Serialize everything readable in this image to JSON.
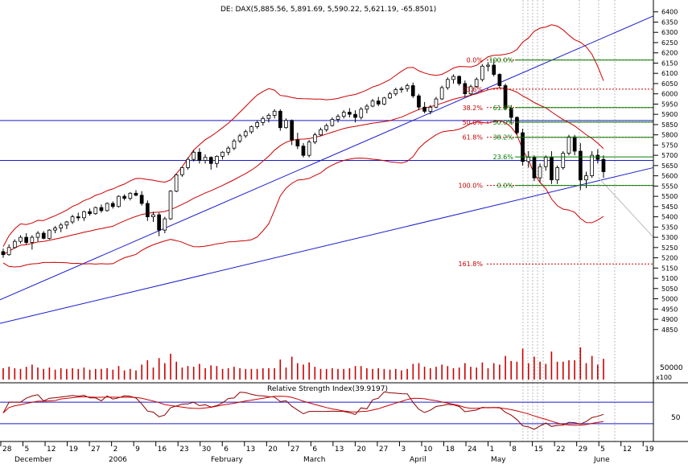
{
  "chart_data": {
    "type": "candlestick",
    "title": "DE: DAX(5,885.56, 5,891.69, 5,590.22, 5,621.19, -65.8501)",
    "y_axis": {
      "min": 4700,
      "max": 6450,
      "ticks": [
        4850,
        4900,
        4950,
        5000,
        5050,
        5100,
        5150,
        5200,
        5250,
        5300,
        5350,
        5400,
        5450,
        5500,
        5550,
        5600,
        5650,
        5700,
        5750,
        5800,
        5850,
        5900,
        5950,
        6000,
        6050,
        6100,
        6150,
        6200,
        6250,
        6300,
        6350,
        6400
      ]
    },
    "volume": {
      "label": "50000",
      "unit": "x100"
    },
    "rsi": {
      "title": "Relative Strength Index(39.9197)",
      "label": "50",
      "upper_level": 70,
      "lower_level": 30
    },
    "x_axis": {
      "days": [
        "28",
        "5",
        "12",
        "19",
        "27",
        "2",
        "9",
        "16",
        "23",
        "30",
        "6",
        "13",
        "20",
        "27",
        "6",
        "13",
        "20",
        "27",
        "3",
        "10",
        "18",
        "24",
        "1",
        "8",
        "15",
        "22",
        "29",
        "5",
        "12",
        "19"
      ],
      "months": [
        "December",
        "2006",
        "February",
        "March",
        "April",
        "May",
        "June"
      ]
    },
    "fibonacci_left": [
      {
        "label": "0.0%",
        "value": 6165,
        "color": "#c00000"
      },
      {
        "label": "23.6%",
        "value": 6023,
        "color": "#c00000"
      },
      {
        "label": "38.2%",
        "value": 5933,
        "color": "#c00000"
      },
      {
        "label": "50.0%",
        "value": 5862,
        "color": "#c00000"
      },
      {
        "label": "61.8%",
        "value": 5788,
        "color": "#c00000"
      },
      {
        "label": "100.0%",
        "value": 5553,
        "color": "#c00000"
      },
      {
        "label": "161.8%",
        "value": 5170,
        "color": "#c00000"
      }
    ],
    "fibonacci_right": [
      {
        "label": "100.0%",
        "value": 6165,
        "color": "#008000"
      },
      {
        "label": "61.8%",
        "value": 5933,
        "color": "#008000"
      },
      {
        "label": "50.0%",
        "value": 5862,
        "color": "#008000"
      },
      {
        "label": "38.2%",
        "value": 5788,
        "color": "#008000"
      },
      {
        "label": "23.6%",
        "value": 5692,
        "color": "#008000"
      },
      {
        "label": "0.0%",
        "value": 5553,
        "color": "#008000"
      }
    ],
    "horizontal_levels": [
      5870,
      5675
    ],
    "candles": [
      [
        5230,
        5245,
        5200,
        5215
      ],
      [
        5215,
        5265,
        5210,
        5250
      ],
      [
        5250,
        5290,
        5245,
        5280
      ],
      [
        5280,
        5310,
        5270,
        5300
      ],
      [
        5300,
        5320,
        5265,
        5275
      ],
      [
        5275,
        5310,
        5240,
        5300
      ],
      [
        5300,
        5330,
        5280,
        5320
      ],
      [
        5320,
        5330,
        5290,
        5295
      ],
      [
        5295,
        5340,
        5290,
        5335
      ],
      [
        5335,
        5355,
        5320,
        5345
      ],
      [
        5345,
        5370,
        5325,
        5360
      ],
      [
        5360,
        5380,
        5340,
        5375
      ],
      [
        5375,
        5410,
        5365,
        5400
      ],
      [
        5400,
        5420,
        5380,
        5395
      ],
      [
        5395,
        5430,
        5380,
        5425
      ],
      [
        5425,
        5440,
        5405,
        5415
      ],
      [
        5415,
        5450,
        5410,
        5445
      ],
      [
        5445,
        5460,
        5420,
        5430
      ],
      [
        5430,
        5470,
        5425,
        5465
      ],
      [
        5465,
        5475,
        5440,
        5450
      ],
      [
        5450,
        5505,
        5445,
        5500
      ],
      [
        5500,
        5510,
        5480,
        5490
      ],
      [
        5490,
        5520,
        5480,
        5515
      ],
      [
        5515,
        5530,
        5500,
        5505
      ],
      [
        5505,
        5525,
        5455,
        5465
      ],
      [
        5465,
        5480,
        5380,
        5400
      ],
      [
        5400,
        5425,
        5375,
        5410
      ],
      [
        5410,
        5420,
        5305,
        5335
      ],
      [
        5335,
        5400,
        5320,
        5390
      ],
      [
        5390,
        5530,
        5385,
        5525
      ],
      [
        5525,
        5610,
        5520,
        5605
      ],
      [
        5605,
        5645,
        5595,
        5640
      ],
      [
        5640,
        5690,
        5630,
        5680
      ],
      [
        5680,
        5725,
        5670,
        5715
      ],
      [
        5715,
        5735,
        5660,
        5675
      ],
      [
        5675,
        5705,
        5660,
        5690
      ],
      [
        5690,
        5695,
        5630,
        5660
      ],
      [
        5660,
        5700,
        5640,
        5695
      ],
      [
        5695,
        5720,
        5680,
        5715
      ],
      [
        5715,
        5745,
        5700,
        5735
      ],
      [
        5735,
        5780,
        5725,
        5770
      ],
      [
        5770,
        5805,
        5760,
        5795
      ],
      [
        5795,
        5825,
        5785,
        5815
      ],
      [
        5815,
        5845,
        5805,
        5840
      ],
      [
        5840,
        5870,
        5830,
        5860
      ],
      [
        5860,
        5890,
        5845,
        5880
      ],
      [
        5880,
        5905,
        5860,
        5895
      ],
      [
        5895,
        5925,
        5880,
        5915
      ],
      [
        5915,
        5925,
        5820,
        5835
      ],
      [
        5835,
        5880,
        5830,
        5870
      ],
      [
        5870,
        5875,
        5750,
        5775
      ],
      [
        5775,
        5810,
        5730,
        5745
      ],
      [
        5745,
        5760,
        5690,
        5700
      ],
      [
        5700,
        5775,
        5690,
        5765
      ],
      [
        5765,
        5810,
        5755,
        5800
      ],
      [
        5800,
        5835,
        5795,
        5825
      ],
      [
        5825,
        5855,
        5815,
        5845
      ],
      [
        5845,
        5885,
        5840,
        5875
      ],
      [
        5875,
        5900,
        5860,
        5890
      ],
      [
        5890,
        5920,
        5880,
        5910
      ],
      [
        5910,
        5930,
        5885,
        5900
      ],
      [
        5900,
        5920,
        5860,
        5885
      ],
      [
        5885,
        5935,
        5875,
        5925
      ],
      [
        5925,
        5950,
        5905,
        5940
      ],
      [
        5940,
        5975,
        5935,
        5965
      ],
      [
        5965,
        5985,
        5940,
        5950
      ],
      [
        5950,
        5985,
        5945,
        5980
      ],
      [
        5980,
        6010,
        5975,
        6000
      ],
      [
        6000,
        6030,
        5990,
        6020
      ],
      [
        6020,
        6035,
        6005,
        6025
      ],
      [
        6025,
        6050,
        6010,
        6040
      ],
      [
        6040,
        6055,
        5980,
        5990
      ],
      [
        5990,
        6000,
        5920,
        5935
      ],
      [
        5935,
        5960,
        5905,
        5915
      ],
      [
        5915,
        5945,
        5900,
        5935
      ],
      [
        5935,
        5985,
        5930,
        5975
      ],
      [
        5975,
        6040,
        5970,
        6030
      ],
      [
        6030,
        6080,
        6020,
        6070
      ],
      [
        6070,
        6095,
        6050,
        6085
      ],
      [
        6085,
        6090,
        6040,
        6050
      ],
      [
        6050,
        6065,
        5985,
        6000
      ],
      [
        6000,
        6045,
        5990,
        6035
      ],
      [
        6035,
        6080,
        6030,
        6070
      ],
      [
        6070,
        6145,
        6060,
        6135
      ],
      [
        6135,
        6155,
        6110,
        6140
      ],
      [
        6140,
        6165,
        6085,
        6095
      ],
      [
        6095,
        6100,
        6030,
        6040
      ],
      [
        6040,
        6050,
        5920,
        5930
      ],
      [
        5930,
        5945,
        5850,
        5885
      ],
      [
        5885,
        5890,
        5800,
        5810
      ],
      [
        5810,
        5830,
        5650,
        5670
      ],
      [
        5670,
        5720,
        5640,
        5690
      ],
      [
        5690,
        5700,
        5575,
        5590
      ],
      [
        5590,
        5660,
        5570,
        5645
      ],
      [
        5645,
        5700,
        5625,
        5690
      ],
      [
        5690,
        5720,
        5560,
        5580
      ],
      [
        5580,
        5650,
        5560,
        5640
      ],
      [
        5640,
        5720,
        5630,
        5710
      ],
      [
        5710,
        5800,
        5700,
        5790
      ],
      [
        5790,
        5800,
        5700,
        5720
      ],
      [
        5720,
        5760,
        5530,
        5580
      ],
      [
        5580,
        5620,
        5540,
        5600
      ],
      [
        5600,
        5720,
        5590,
        5700
      ],
      [
        5700,
        5730,
        5660,
        5680
      ],
      [
        5680,
        5700,
        5590,
        5620
      ]
    ]
  }
}
